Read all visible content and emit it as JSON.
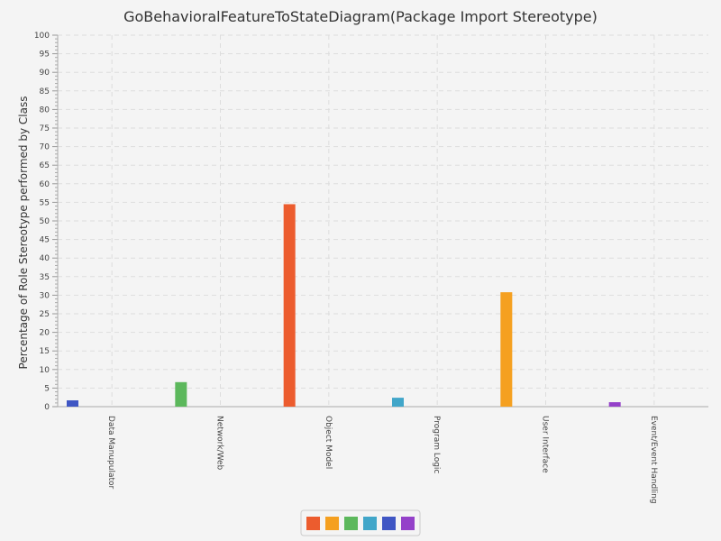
{
  "chart_data": {
    "type": "bar",
    "title": "GoBehavioralFeatureToStateDiagram(Package Import Stereotype)",
    "xlabel": "",
    "ylabel": "Percentage of Role Stereotype performed by Class",
    "ylim": [
      0,
      100
    ],
    "yticks": [
      0,
      5,
      10,
      15,
      20,
      25,
      30,
      35,
      40,
      45,
      50,
      55,
      60,
      65,
      70,
      75,
      80,
      85,
      90,
      95,
      100
    ],
    "grid": true,
    "legend_position": "bottom",
    "categories": [
      "Data Manupulator",
      "Network/Web",
      "Object Model",
      "Program Logic",
      "User Interface",
      "Event/Event Handling"
    ],
    "series": [
      {
        "color": "#ec5c2e",
        "values": [
          0,
          0,
          54.5,
          0,
          0,
          0
        ]
      },
      {
        "color": "#f5a020",
        "values": [
          0,
          0,
          0,
          0,
          30.8,
          0
        ]
      },
      {
        "color": "#5cb85c",
        "values": [
          0,
          6.6,
          0,
          0,
          0,
          0
        ]
      },
      {
        "color": "#41a6c9",
        "values": [
          0,
          0,
          0,
          2.4,
          0,
          0
        ]
      },
      {
        "color": "#3f56c4",
        "values": [
          1.7,
          0,
          0,
          0,
          0,
          0
        ]
      },
      {
        "color": "#9441c9",
        "values": [
          0,
          0,
          0,
          0,
          0,
          1.2
        ]
      }
    ]
  }
}
